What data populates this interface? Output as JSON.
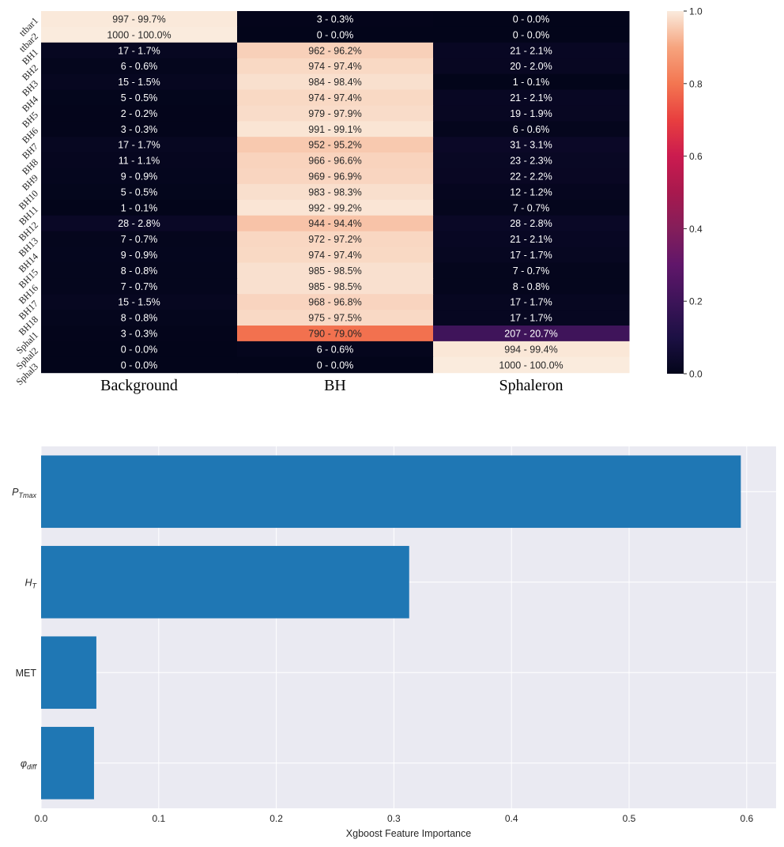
{
  "chart_data": [
    {
      "type": "heatmap",
      "rows": [
        "ttbar1",
        "ttbar2",
        "BH1",
        "BH2",
        "BH3",
        "BH4",
        "BH5",
        "BH6",
        "BH7",
        "BH8",
        "BH9",
        "BH10",
        "BH11",
        "BH12",
        "BH13",
        "BH14",
        "BH15",
        "BH16",
        "BH17",
        "BH18",
        "Sphal1",
        "Sphal2",
        "Sphal3"
      ],
      "columns": [
        "Background",
        "BH",
        "Sphaleron"
      ],
      "values": [
        [
          0.997,
          0.003,
          0.0
        ],
        [
          1.0,
          0.0,
          0.0
        ],
        [
          0.017,
          0.962,
          0.021
        ],
        [
          0.006,
          0.974,
          0.02
        ],
        [
          0.015,
          0.984,
          0.001
        ],
        [
          0.005,
          0.974,
          0.021
        ],
        [
          0.002,
          0.979,
          0.019
        ],
        [
          0.003,
          0.991,
          0.006
        ],
        [
          0.017,
          0.952,
          0.031
        ],
        [
          0.011,
          0.966,
          0.023
        ],
        [
          0.009,
          0.969,
          0.022
        ],
        [
          0.005,
          0.983,
          0.012
        ],
        [
          0.001,
          0.992,
          0.007
        ],
        [
          0.028,
          0.944,
          0.028
        ],
        [
          0.007,
          0.972,
          0.021
        ],
        [
          0.009,
          0.974,
          0.017
        ],
        [
          0.008,
          0.985,
          0.007
        ],
        [
          0.007,
          0.985,
          0.008
        ],
        [
          0.015,
          0.968,
          0.017
        ],
        [
          0.008,
          0.975,
          0.017
        ],
        [
          0.003,
          0.79,
          0.207
        ],
        [
          0.0,
          0.006,
          0.994
        ],
        [
          0.0,
          0.0,
          1.0
        ]
      ],
      "annotations": [
        [
          "997 - 99.7%",
          "3 - 0.3%",
          "0 - 0.0%"
        ],
        [
          "1000 - 100.0%",
          "0 - 0.0%",
          "0 - 0.0%"
        ],
        [
          "17 - 1.7%",
          "962 - 96.2%",
          "21 - 2.1%"
        ],
        [
          "6 - 0.6%",
          "974 - 97.4%",
          "20 - 2.0%"
        ],
        [
          "15 - 1.5%",
          "984 - 98.4%",
          "1 - 0.1%"
        ],
        [
          "5 - 0.5%",
          "974 - 97.4%",
          "21 - 2.1%"
        ],
        [
          "2 - 0.2%",
          "979 - 97.9%",
          "19 - 1.9%"
        ],
        [
          "3 - 0.3%",
          "991 - 99.1%",
          "6 - 0.6%"
        ],
        [
          "17 - 1.7%",
          "952 - 95.2%",
          "31 - 3.1%"
        ],
        [
          "11 - 1.1%",
          "966 - 96.6%",
          "23 - 2.3%"
        ],
        [
          "9 - 0.9%",
          "969 - 96.9%",
          "22 - 2.2%"
        ],
        [
          "5 - 0.5%",
          "983 - 98.3%",
          "12 - 1.2%"
        ],
        [
          "1 - 0.1%",
          "992 - 99.2%",
          "7 - 0.7%"
        ],
        [
          "28 - 2.8%",
          "944 - 94.4%",
          "28 - 2.8%"
        ],
        [
          "7 - 0.7%",
          "972 - 97.2%",
          "21 - 2.1%"
        ],
        [
          "9 - 0.9%",
          "974 - 97.4%",
          "17 - 1.7%"
        ],
        [
          "8 - 0.8%",
          "985 - 98.5%",
          "7 - 0.7%"
        ],
        [
          "7 - 0.7%",
          "985 - 98.5%",
          "8 - 0.8%"
        ],
        [
          "15 - 1.5%",
          "968 - 96.8%",
          "17 - 1.7%"
        ],
        [
          "8 - 0.8%",
          "975 - 97.5%",
          "17 - 1.7%"
        ],
        [
          "3 - 0.3%",
          "790 - 79.0%",
          "207 - 20.7%"
        ],
        [
          "0 - 0.0%",
          "6 - 0.6%",
          "994 - 99.4%"
        ],
        [
          "0 - 0.0%",
          "0 - 0.0%",
          "1000 - 100.0%"
        ]
      ],
      "colorbar": {
        "range": [
          0,
          1
        ],
        "ticks": [
          "0.0",
          "0.2",
          "0.4",
          "0.6",
          "0.8",
          "1.0"
        ],
        "colormap": "rocket"
      }
    },
    {
      "type": "bar",
      "orientation": "horizontal",
      "categories": [
        "P_Tmax",
        "H_T",
        "MET",
        "phi_diff"
      ],
      "category_labels": [
        {
          "main": "P",
          "sub": "Tmax"
        },
        {
          "main": "H",
          "sub": "T"
        },
        {
          "main": "MET",
          "sub": ""
        },
        {
          "main": "φ",
          "sub": "diff"
        }
      ],
      "values": [
        0.595,
        0.313,
        0.047,
        0.045
      ],
      "xlabel": "Xgboost Feature Importance",
      "xlim": [
        0,
        0.625
      ],
      "xticks": [
        "0.0",
        "0.1",
        "0.2",
        "0.3",
        "0.4",
        "0.5",
        "0.6"
      ],
      "bar_color": "#1f77b4",
      "background": "#eaeaf2",
      "grid": true
    }
  ]
}
